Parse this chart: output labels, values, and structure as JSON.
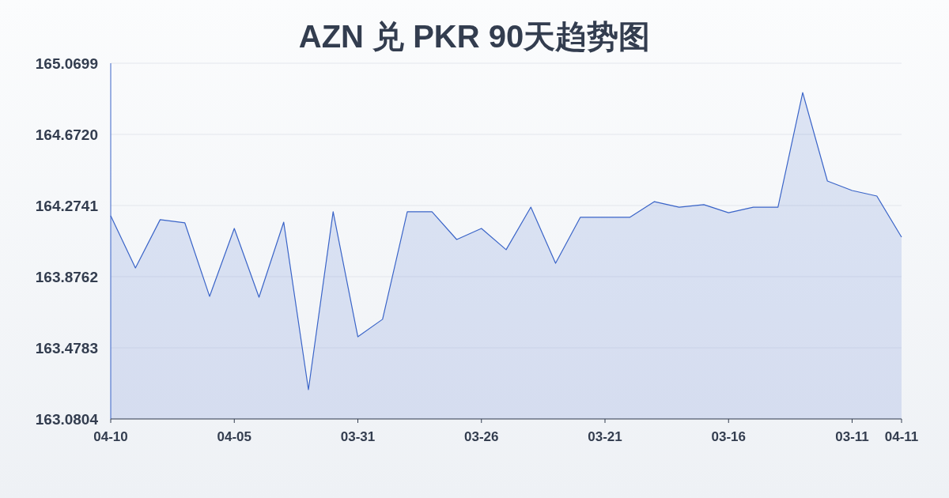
{
  "chart_data": {
    "type": "area",
    "title": "AZN 兑 PKR 90天趋势图",
    "categories": [
      "04-10",
      null,
      null,
      null,
      null,
      "04-05",
      null,
      null,
      null,
      null,
      "03-31",
      null,
      null,
      null,
      null,
      "03-26",
      null,
      null,
      null,
      null,
      "03-21",
      null,
      null,
      null,
      null,
      "03-16",
      null,
      null,
      null,
      null,
      "03-11",
      null,
      "04-11"
    ],
    "series": [
      {
        "color": "#3a64c8",
        "values": [
          164.217,
          163.925,
          164.195,
          164.177,
          163.766,
          164.146,
          163.761,
          164.181,
          163.244,
          164.239,
          163.54,
          163.638,
          164.239,
          164.239,
          164.084,
          164.146,
          164.027,
          164.265,
          163.951,
          164.208,
          164.208,
          164.208,
          164.296,
          164.265,
          164.279,
          164.234,
          164.265,
          164.265,
          164.906,
          164.411,
          164.358,
          164.327,
          164.097
        ]
      }
    ],
    "ylim": [
      163.0804,
      165.0699
    ],
    "yticks": [
      163.0804,
      163.4783,
      163.8762,
      {
        "value": 164.2741,
        "label": "164.2741"
      },
      {
        "value": 164.672,
        "label": "164.6720"
      },
      165.0699
    ],
    "grid": "y",
    "marker": "none",
    "line_style": "solid"
  }
}
